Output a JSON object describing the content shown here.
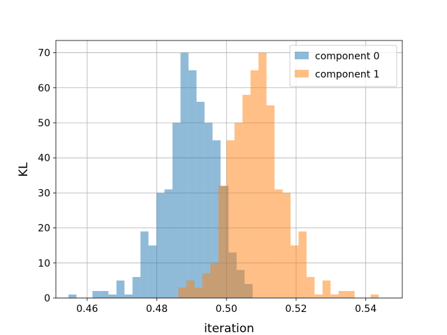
{
  "chart_data": {
    "type": "histogram",
    "xlabel": "iteration",
    "ylabel": "KL",
    "xlim": [
      0.451,
      0.5505
    ],
    "ylim": [
      0,
      73.5
    ],
    "x_ticks": [
      0.46,
      0.48,
      0.5,
      0.52,
      0.54
    ],
    "x_tick_labels": [
      "0.46",
      "0.48",
      "0.50",
      "0.52",
      "0.54"
    ],
    "y_ticks": [
      0,
      10,
      20,
      30,
      40,
      50,
      60,
      70
    ],
    "y_tick_labels": [
      "0",
      "10",
      "20",
      "30",
      "40",
      "50",
      "60",
      "70"
    ],
    "grid": true,
    "legend_position": "top-right",
    "colors": {
      "component 0": "#1f77b4",
      "component 1": "#ff7f0e"
    },
    "bar_alpha": 0.5,
    "series": [
      {
        "name": "component 0",
        "bins": [
          [
            0.4546,
            0.4569,
            1
          ],
          [
            0.4569,
            0.4592,
            0
          ],
          [
            0.4592,
            0.4615,
            0
          ],
          [
            0.4615,
            0.4638,
            2
          ],
          [
            0.4638,
            0.4661,
            2
          ],
          [
            0.4661,
            0.4684,
            1
          ],
          [
            0.4684,
            0.4707,
            5
          ],
          [
            0.4707,
            0.473,
            1
          ],
          [
            0.473,
            0.4753,
            6
          ],
          [
            0.4753,
            0.4776,
            19
          ],
          [
            0.4776,
            0.4799,
            15
          ],
          [
            0.4799,
            0.4822,
            30
          ],
          [
            0.4822,
            0.4845,
            31
          ],
          [
            0.4845,
            0.4868,
            50
          ],
          [
            0.4868,
            0.4891,
            70
          ],
          [
            0.4891,
            0.4914,
            65
          ],
          [
            0.4914,
            0.4937,
            56
          ],
          [
            0.4937,
            0.496,
            50
          ],
          [
            0.496,
            0.4983,
            45
          ],
          [
            0.4983,
            0.5006,
            32
          ],
          [
            0.5006,
            0.5029,
            13
          ],
          [
            0.5029,
            0.5052,
            8
          ],
          [
            0.5052,
            0.5075,
            4
          ]
        ]
      },
      {
        "name": "component 1",
        "bins": [
          [
            0.4862,
            0.4885,
            3
          ],
          [
            0.4885,
            0.4908,
            5
          ],
          [
            0.4908,
            0.4931,
            3
          ],
          [
            0.4931,
            0.4954,
            7
          ],
          [
            0.4954,
            0.4977,
            10
          ],
          [
            0.4977,
            0.5,
            32
          ],
          [
            0.5,
            0.5023,
            45
          ],
          [
            0.5023,
            0.5046,
            50
          ],
          [
            0.5046,
            0.5069,
            58
          ],
          [
            0.5069,
            0.5092,
            65
          ],
          [
            0.5092,
            0.5115,
            70
          ],
          [
            0.5115,
            0.5138,
            55
          ],
          [
            0.5138,
            0.5161,
            31
          ],
          [
            0.5161,
            0.5184,
            30
          ],
          [
            0.5184,
            0.5207,
            15
          ],
          [
            0.5207,
            0.523,
            19
          ],
          [
            0.523,
            0.5253,
            6
          ],
          [
            0.5253,
            0.5276,
            1
          ],
          [
            0.5276,
            0.5299,
            5
          ],
          [
            0.5299,
            0.5322,
            1
          ],
          [
            0.5322,
            0.5345,
            2
          ],
          [
            0.5345,
            0.5368,
            2
          ],
          [
            0.5368,
            0.5391,
            0
          ],
          [
            0.5391,
            0.5414,
            0
          ],
          [
            0.5414,
            0.5437,
            1
          ]
        ]
      }
    ]
  }
}
